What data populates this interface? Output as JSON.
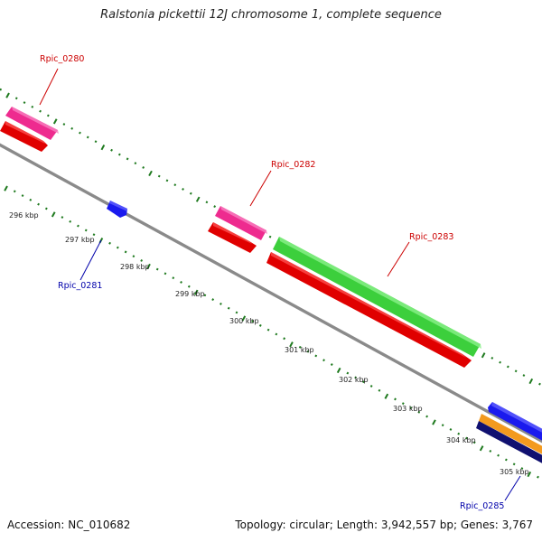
{
  "title": "Ralstonia pickettii 12J chromosome 1, complete sequence",
  "footer": {
    "accession": "Accession: NC_010682",
    "summary": "Topology: circular; Length: 3,942,557 bp; Genes: 3,767"
  },
  "colors": {
    "backbone": "#8a8a8a",
    "tick_green": "#1f7a1f",
    "locus_forward": "#cc0000",
    "locus_reverse": "#0000aa",
    "cds": "#e00000",
    "gene_pink": "#ee2b8f",
    "gene_green": "#3ccf3c",
    "gene_blue": "#1a1aee",
    "gene_orange": "#f39a1f",
    "gene_navy": "#101070"
  },
  "scale": {
    "unit": "kbp",
    "ticks": [
      "296 kbp",
      "297 kbp",
      "298 kbp",
      "299 kbp",
      "300 kbp",
      "301 kbp",
      "302 kbp",
      "303 kbp",
      "304 kbp",
      "305 kbp"
    ]
  },
  "features": [
    {
      "label": "Rpic_0280",
      "strand": "forward",
      "color_key": "locus_forward"
    },
    {
      "label": "Rpic_0281",
      "strand": "reverse",
      "color_key": "locus_reverse"
    },
    {
      "label": "Rpic_0282",
      "strand": "forward",
      "color_key": "locus_forward"
    },
    {
      "label": "Rpic_0283",
      "strand": "forward",
      "color_key": "locus_forward"
    },
    {
      "label": "Rpic_0285",
      "strand": "reverse",
      "color_key": "locus_reverse"
    }
  ]
}
